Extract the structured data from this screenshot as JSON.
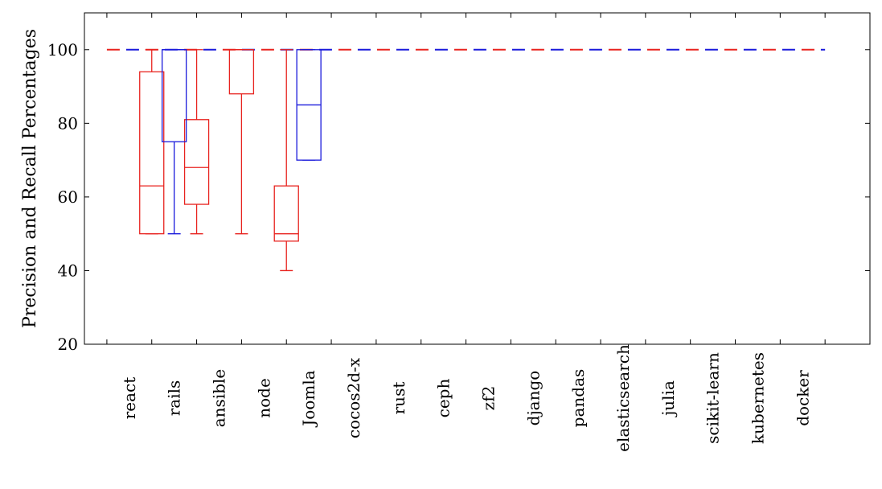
{
  "chart_data": {
    "type": "box",
    "title": "",
    "xlabel": "",
    "ylabel": "Precision and Recall Percentages",
    "ylim": [
      20,
      110
    ],
    "yticks": [
      20,
      40,
      60,
      80,
      100
    ],
    "grid": false,
    "categories": [
      "react",
      "rails",
      "ansible",
      "node",
      "Joomla",
      "cocos2d-x",
      "rust",
      "ceph",
      "zf2",
      "django",
      "pandas",
      "elasticsearch",
      "julia",
      "scikit-learn",
      "kubernetes",
      "docker"
    ],
    "series": [
      {
        "color": "#e8231f",
        "boxes": [
          {
            "x": 1.5,
            "min": 50,
            "q1": 50,
            "median": 63,
            "q3": 94,
            "max": 100
          },
          {
            "x": 2.5,
            "min": 50,
            "q1": 58,
            "median": 68,
            "q3": 81,
            "max": 100
          },
          {
            "x": 3.5,
            "min": 50,
            "q1": 88,
            "median": 100,
            "q3": 100,
            "max": 100
          },
          {
            "x": 4.5,
            "min": 40,
            "q1": 48,
            "median": 50,
            "q3": 63,
            "max": 100
          }
        ]
      },
      {
        "color": "#1a1adb",
        "boxes": [
          {
            "x": 2.0,
            "min": 50,
            "q1": 75,
            "median": 100,
            "q3": 100,
            "max": 100
          },
          {
            "x": 5.0,
            "min": 70,
            "q1": 70,
            "median": 85,
            "q3": 100,
            "max": 100
          }
        ]
      }
    ],
    "reference_line": {
      "y": 100,
      "from": 0.5,
      "to": 16.5,
      "style": "dashed",
      "colors": [
        "#e8231f",
        "#1a1adb"
      ]
    }
  }
}
